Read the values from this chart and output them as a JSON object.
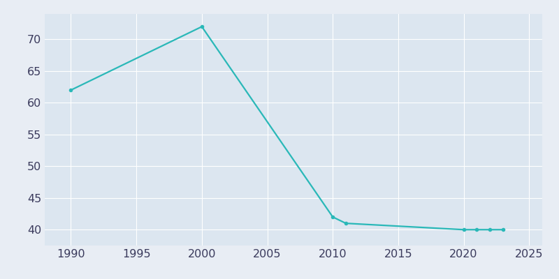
{
  "years": [
    1990,
    2000,
    2010,
    2011,
    2020,
    2021,
    2022,
    2023
  ],
  "population": [
    62,
    72,
    42,
    41,
    40,
    40,
    40,
    40
  ],
  "line_color": "#2ab8b8",
  "marker": "o",
  "marker_size": 3,
  "linewidth": 1.6,
  "xlabel": "",
  "ylabel": "",
  "fig_background_color": "#e8edf4",
  "plot_background_color": "#dce6f0",
  "grid_color": "#ffffff",
  "xlim": [
    1988,
    2026
  ],
  "ylim": [
    37.5,
    74
  ],
  "xticks": [
    1990,
    1995,
    2000,
    2005,
    2010,
    2015,
    2020,
    2025
  ],
  "yticks": [
    40,
    45,
    50,
    55,
    60,
    65,
    70
  ],
  "tick_color": "#3a3a5c",
  "tick_fontsize": 11.5
}
